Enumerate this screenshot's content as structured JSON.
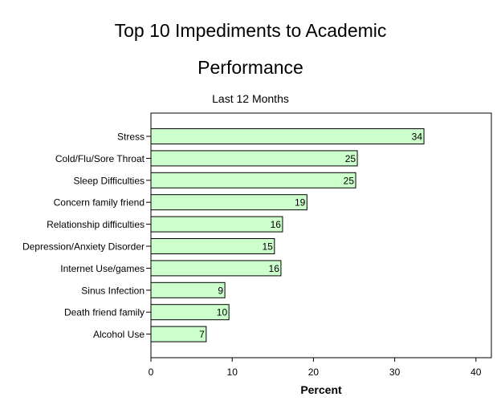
{
  "chart_data": {
    "type": "bar",
    "orientation": "horizontal",
    "title": "Top 10 Impediments to Academic Performance",
    "title_lines": [
      "Top 10 Impediments to Academic",
      "Performance"
    ],
    "subtitle": "Last 12 Months",
    "xlabel": "Percent",
    "ylabel": "",
    "xlim": [
      0,
      42
    ],
    "xticks": [
      0,
      10,
      20,
      30,
      40
    ],
    "grid": false,
    "legend": "none",
    "bar_color": "#ccffcc",
    "bar_edge_color": "#000000",
    "categories": [
      "Stress",
      "Cold/Flu/Sore Throat",
      "Sleep Difficulties",
      "Concern family friend",
      "Relationship difficulties",
      "Depression/Anxiety Disorder",
      "Internet Use/games",
      "Sinus Infection",
      "Death friend family",
      "Alcohol Use"
    ],
    "values": [
      33.6,
      25.4,
      25.2,
      19.2,
      16.2,
      15.2,
      16.0,
      9.1,
      9.6,
      6.8
    ],
    "data_labels": [
      "34",
      "25",
      "25",
      "19",
      "16",
      "15",
      "16",
      "9",
      "10",
      "7"
    ]
  }
}
